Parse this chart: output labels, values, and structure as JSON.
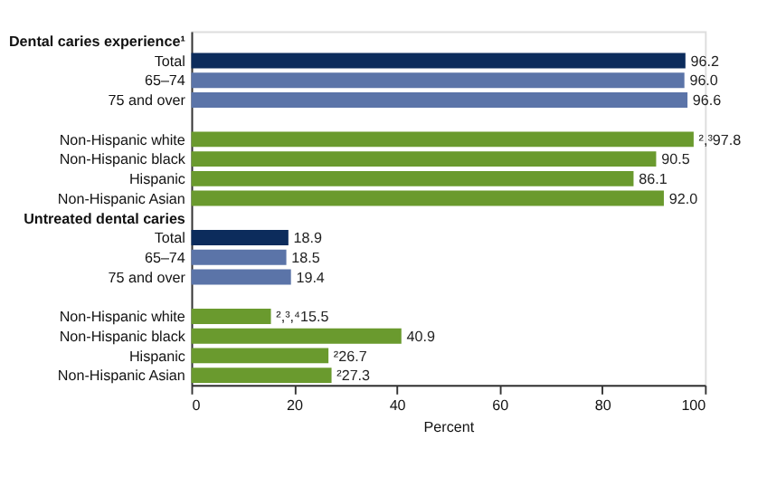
{
  "chart_data": {
    "type": "bar",
    "orientation": "horizontal",
    "categories": [
      "Dental caries experience¹",
      "Total",
      "65–74",
      "75 and over",
      null,
      "Non-Hispanic white",
      "Non-Hispanic black",
      "Hispanic",
      "Non-Hispanic Asian",
      "Untreated dental caries",
      "Total",
      "65–74",
      "75 and over",
      null,
      "Non-Hispanic white",
      "Non-Hispanic black",
      "Hispanic",
      "Non-Hispanic Asian"
    ],
    "series": [
      {
        "values": [
          null,
          96.2,
          96.0,
          96.6,
          null,
          97.8,
          90.5,
          86.1,
          92.0,
          null,
          18.9,
          18.5,
          19.4,
          null,
          15.5,
          40.9,
          26.7,
          27.3
        ],
        "colors": [
          null,
          "#0c2c5c",
          "#5b74a8",
          "#5b74a8",
          null,
          "#6a9a2e",
          "#6a9a2e",
          "#6a9a2e",
          "#6a9a2e",
          null,
          "#0c2c5c",
          "#5b74a8",
          "#5b74a8",
          null,
          "#6a9a2e",
          "#6a9a2e",
          "#6a9a2e",
          "#6a9a2e"
        ],
        "value_labels": [
          null,
          "96.2",
          "96.0",
          "96.6",
          null,
          "²,³97.8",
          "90.5",
          "86.1",
          "92.0",
          null,
          "18.9",
          "18.5",
          "19.4",
          null,
          "²,³,⁴15.5",
          "40.9",
          "²26.7",
          "²27.3"
        ]
      }
    ],
    "xlabel": "Percent",
    "xlim": [
      0,
      100
    ],
    "xticks": [
      0,
      20,
      40,
      60,
      80,
      100
    ],
    "grid": false
  }
}
